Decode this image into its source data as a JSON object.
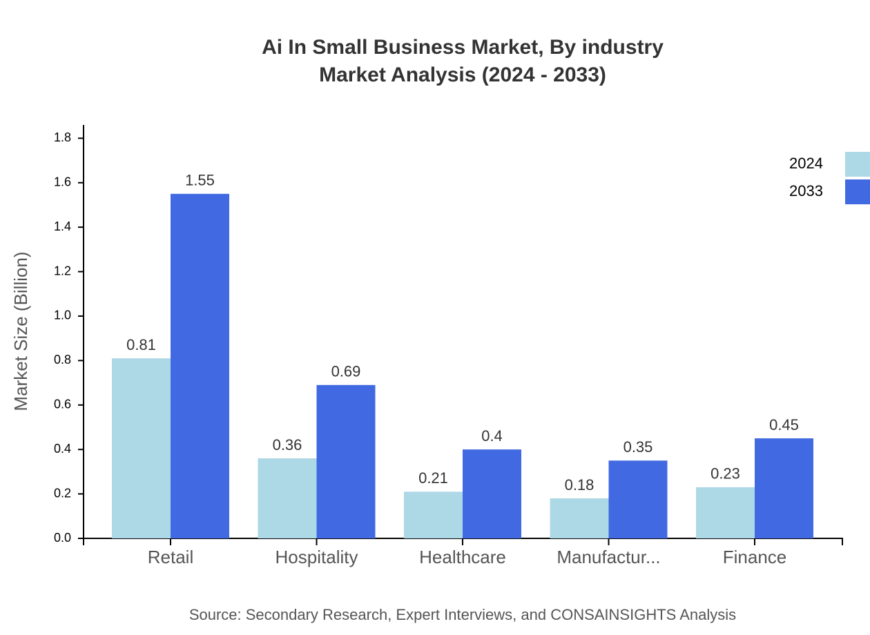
{
  "chart_data": {
    "type": "bar",
    "title": [
      "Ai In Small Business Market, By industry",
      "Market Analysis (2024 - 2033)"
    ],
    "y_label": "Market Size (Billion)",
    "source": "Source: Secondary Research, Expert Interviews, and CONSAINSIGHTS Analysis",
    "categories": [
      "Retail",
      "Hospitality",
      "Healthcare",
      "Manufactur...",
      "Finance"
    ],
    "series": [
      {
        "name": "2024",
        "color": "#add8e6",
        "values": [
          0.81,
          0.36,
          0.21,
          0.18,
          0.23
        ]
      },
      {
        "name": "2033",
        "color": "#4169e1",
        "values": [
          1.55,
          0.69,
          0.4,
          0.35,
          0.45
        ]
      }
    ],
    "ylim": [
      0,
      1.86
    ],
    "yticks": [
      {
        "value": 0,
        "label": "0.0"
      },
      0.2,
      0.4,
      0.6,
      0.8,
      {
        "value": 1,
        "label": "1.0"
      },
      1.2,
      1.4,
      1.6,
      1.8
    ],
    "grid": false,
    "legend": "top-right"
  }
}
